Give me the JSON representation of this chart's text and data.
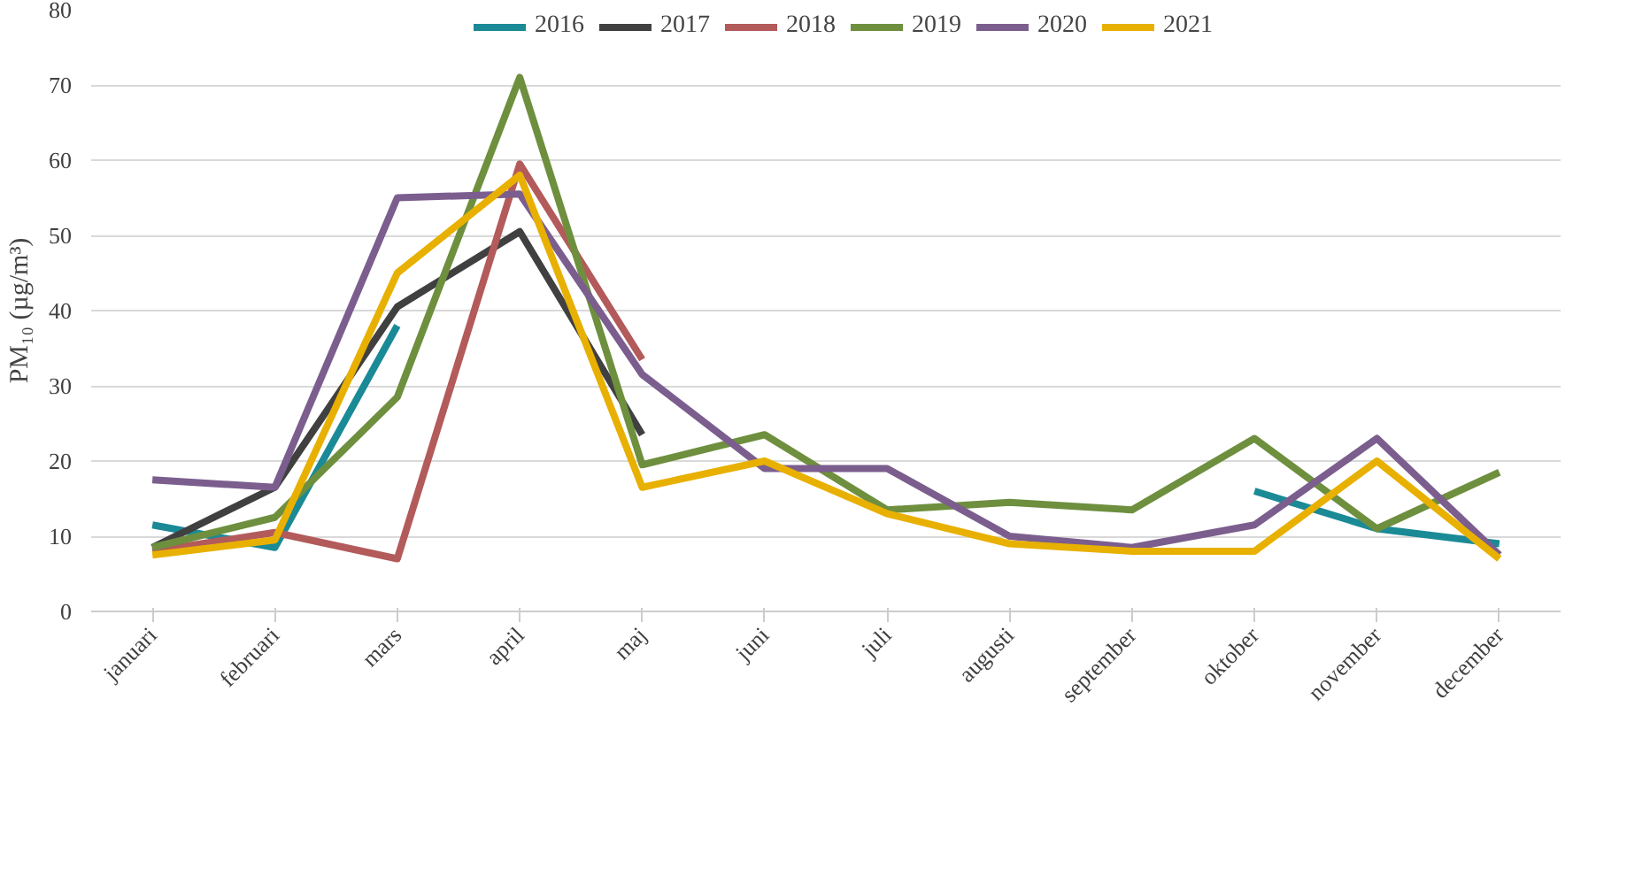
{
  "chart_data": {
    "type": "line",
    "ylabel": "PM₁₀ (µg/m³)",
    "categories": [
      "januari",
      "februari",
      "mars",
      "april",
      "maj",
      "juni",
      "juli",
      "augusti",
      "september",
      "oktober",
      "november",
      "december"
    ],
    "ylim": [
      0,
      80
    ],
    "yticks": [
      0,
      10,
      20,
      30,
      40,
      50,
      60,
      70,
      80
    ],
    "grid": "y",
    "legend": "top",
    "line_style": "solid",
    "series": [
      {
        "name": "2016",
        "color": "#1a8a96",
        "values": [
          11.5,
          8.5,
          38,
          null,
          null,
          null,
          null,
          null,
          null,
          16,
          11,
          9
        ]
      },
      {
        "name": "2017",
        "color": "#404040",
        "values": [
          8.5,
          16.5,
          40.5,
          50.5,
          23.5,
          null,
          null,
          null,
          null,
          null,
          null,
          null
        ]
      },
      {
        "name": "2018",
        "color": "#b35a5a",
        "values": [
          8,
          10.5,
          7,
          59.5,
          33.5,
          null,
          null,
          null,
          null,
          null,
          null,
          null
        ]
      },
      {
        "name": "2019",
        "color": "#6e8f3e",
        "values": [
          8.5,
          12.5,
          28.5,
          71,
          19.5,
          23.5,
          13.5,
          14.5,
          13.5,
          23,
          11,
          18.5
        ]
      },
      {
        "name": "2020",
        "color": "#7b5e8e",
        "values": [
          17.5,
          16.5,
          55,
          55.5,
          31.5,
          19,
          19,
          10,
          8.5,
          11.5,
          23,
          7.5
        ]
      },
      {
        "name": "2021",
        "color": "#e8b000",
        "values": [
          7.5,
          9.5,
          45,
          58,
          16.5,
          20,
          13,
          9,
          8,
          8,
          20,
          7
        ]
      }
    ]
  }
}
